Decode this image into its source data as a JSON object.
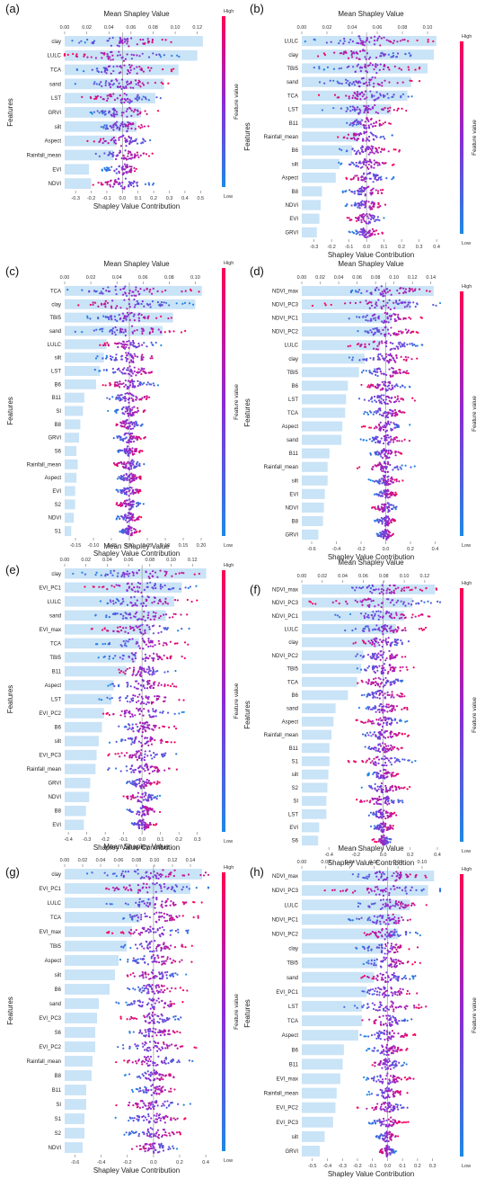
{
  "figure": {
    "common": {
      "top_axis_label": "Mean Shapley Value",
      "bottom_axis_label": "Shapley Value Contribution",
      "y_axis_label": "Features",
      "colorbar_label": "Feature value",
      "colorbar_high": "High",
      "colorbar_low": "Low",
      "colors": {
        "bar": "#c9e3f7",
        "low": "#1e88e5",
        "high": "#ff0052",
        "dot_mid": "#8a2bd4",
        "zero_line": "#999999"
      }
    }
  },
  "chart_data": [
    {
      "panel": "(a)",
      "type": "bar",
      "features": [
        "clay",
        "LULC",
        "TCA",
        "sand",
        "LST",
        "GRVI",
        "silt",
        "Aspect",
        "Rainfall_mean",
        "EVI",
        "NDVI"
      ],
      "mean_shapley": [
        0.125,
        0.12,
        0.103,
        0.09,
        0.082,
        0.069,
        0.065,
        0.047,
        0.044,
        0.022,
        0.024
      ],
      "spread": [
        0.34,
        0.42,
        0.34,
        0.32,
        0.28,
        0.24,
        0.2,
        0.24,
        0.22,
        0.14,
        0.2
      ],
      "top_ticks": [
        "0.00",
        "0.02",
        "0.04",
        "0.06",
        "0.08",
        "0.10",
        "0.12"
      ],
      "top_range": [
        0,
        0.13
      ],
      "bottom_ticks": [
        "-0.3",
        "-0.2",
        "-0.1",
        "0.0",
        "0.1",
        "0.2",
        "0.3",
        "0.4",
        "0.5"
      ],
      "bottom_range": [
        -0.37,
        0.55
      ]
    },
    {
      "panel": "(b)",
      "type": "bar",
      "features": [
        "LULC",
        "clay",
        "TBI5",
        "sand",
        "TCA",
        "LST",
        "B11",
        "Rainfall_mean",
        "B6",
        "silt",
        "Aspect",
        "B8",
        "NDVI",
        "EVI",
        "GRVI"
      ],
      "mean_shapley": [
        0.107,
        0.105,
        0.1,
        0.087,
        0.084,
        0.071,
        0.048,
        0.045,
        0.04,
        0.03,
        0.027,
        0.016,
        0.015,
        0.014,
        0.012
      ],
      "spread": [
        0.4,
        0.34,
        0.34,
        0.32,
        0.3,
        0.26,
        0.18,
        0.2,
        0.2,
        0.16,
        0.16,
        0.14,
        0.13,
        0.12,
        0.1
      ],
      "top_ticks": [
        "0.00",
        "0.02",
        "0.04",
        "0.06",
        "0.08",
        "0.10"
      ],
      "top_range": [
        0,
        0.11
      ],
      "bottom_ticks": [
        "-0.3",
        "-0.2",
        "-0.1",
        "0.0",
        "0.1",
        "0.2",
        "0.3",
        "0.4"
      ],
      "bottom_range": [
        -0.37,
        0.42
      ]
    },
    {
      "panel": "(c)",
      "type": "bar",
      "features": [
        "TCA",
        "clay",
        "TBI5",
        "sand",
        "LULC",
        "silt",
        "LST",
        "B6",
        "B11",
        "SI",
        "B8",
        "GRVI",
        "S6",
        "Rainfall_mean",
        "Aspect",
        "EVI",
        "S2",
        "NDVI",
        "S1"
      ],
      "mean_shapley": [
        0.105,
        0.1,
        0.083,
        0.075,
        0.032,
        0.03,
        0.027,
        0.024,
        0.015,
        0.014,
        0.012,
        0.011,
        0.009,
        0.01,
        0.009,
        0.008,
        0.008,
        0.007,
        0.005
      ],
      "spread": [
        0.2,
        0.18,
        0.12,
        0.16,
        0.1,
        0.1,
        0.1,
        0.08,
        0.07,
        0.06,
        0.05,
        0.05,
        0.04,
        0.05,
        0.04,
        0.04,
        0.04,
        0.04,
        0.03
      ],
      "top_ticks": [
        "0.00",
        "0.02",
        "0.04",
        "0.06",
        "0.08",
        "0.10"
      ],
      "top_range": [
        0,
        0.11
      ],
      "bottom_ticks": [
        "-0.15",
        "-0.10",
        "-0.05",
        "0.00",
        "0.05",
        "0.10",
        "0.15",
        "0.20"
      ],
      "bottom_range": [
        -0.18,
        0.22
      ]
    },
    {
      "panel": "(d)",
      "type": "bar",
      "features": [
        "NDVI_max",
        "NDVI_PC3",
        "NDVI_PC1",
        "NDVI_PC2",
        "LULC",
        "clay",
        "TBI5",
        "B6",
        "LST",
        "TCA",
        "Aspect",
        "sand",
        "B11",
        "Rainfall_mean",
        "silt",
        "EVI",
        "NDVI",
        "B8",
        "GRVI"
      ],
      "mean_shapley": [
        0.143,
        0.118,
        0.097,
        0.094,
        0.085,
        0.068,
        0.062,
        0.05,
        0.048,
        0.047,
        0.044,
        0.043,
        0.03,
        0.028,
        0.028,
        0.025,
        0.024,
        0.023,
        0.018
      ],
      "spread": [
        0.42,
        0.6,
        0.34,
        0.3,
        0.34,
        0.3,
        0.26,
        0.2,
        0.26,
        0.22,
        0.2,
        0.22,
        0.14,
        0.24,
        0.14,
        0.1,
        0.12,
        0.1,
        0.08
      ],
      "top_ticks": [
        "0.00",
        "0.02",
        "0.04",
        "0.06",
        "0.08",
        "0.10",
        "0.12",
        "0.14"
      ],
      "top_range": [
        0,
        0.15
      ],
      "bottom_ticks": [
        "-0.6",
        "-0.4",
        "-0.2",
        "0.0",
        "0.2",
        "0.4"
      ],
      "bottom_range": [
        -0.68,
        0.44
      ]
    },
    {
      "panel": "(e)",
      "type": "bar",
      "features": [
        "clay",
        "EVI_PC1",
        "LULC",
        "sand",
        "EVI_max",
        "TCA",
        "TBI5",
        "B11",
        "Aspect",
        "LST",
        "EVI_PC2",
        "B6",
        "silt",
        "EVI_PC3",
        "Rainfall_mean",
        "GRVI",
        "NDVI",
        "B8",
        "EVI"
      ],
      "mean_shapley": [
        0.133,
        0.11,
        0.103,
        0.095,
        0.08,
        0.07,
        0.067,
        0.058,
        0.046,
        0.044,
        0.037,
        0.035,
        0.032,
        0.03,
        0.029,
        0.024,
        0.023,
        0.02,
        0.018
      ],
      "spread": [
        0.38,
        0.32,
        0.32,
        0.3,
        0.28,
        0.26,
        0.24,
        0.2,
        0.2,
        0.24,
        0.26,
        0.2,
        0.18,
        0.2,
        0.22,
        0.1,
        0.12,
        0.1,
        0.08
      ],
      "top_ticks": [
        "0.00",
        "0.02",
        "0.04",
        "0.06",
        "0.08",
        "0.10",
        "0.12"
      ],
      "top_range": [
        0,
        0.135
      ],
      "bottom_ticks": [
        "-0.4",
        "-0.3",
        "-0.2",
        "-0.1",
        "0.0",
        "0.1",
        "0.2",
        "0.3"
      ],
      "bottom_range": [
        -0.42,
        0.36
      ]
    },
    {
      "panel": "(f)",
      "type": "bar",
      "features": [
        "NDVI_max",
        "NDVI_PC3",
        "NDVI_PC1",
        "LULC",
        "clay",
        "NDVI_PC2",
        "TBI5",
        "TCA",
        "B6",
        "sand",
        "Aspect",
        "Rainfall_mean",
        "B11",
        "S1",
        "silt",
        "S2",
        "SI",
        "LST",
        "EVI",
        "S6"
      ],
      "mean_shapley": [
        0.13,
        0.108,
        0.1,
        0.092,
        0.075,
        0.06,
        0.058,
        0.054,
        0.045,
        0.033,
        0.031,
        0.029,
        0.027,
        0.027,
        0.026,
        0.025,
        0.024,
        0.024,
        0.017,
        0.016
      ],
      "spread": [
        0.4,
        0.56,
        0.36,
        0.32,
        0.26,
        0.24,
        0.24,
        0.22,
        0.2,
        0.2,
        0.2,
        0.2,
        0.14,
        0.26,
        0.12,
        0.2,
        0.2,
        0.12,
        0.1,
        0.08
      ],
      "top_ticks": [
        "0.00",
        "0.02",
        "0.04",
        "0.06",
        "0.08",
        "0.10",
        "0.12"
      ],
      "top_range": [
        0,
        0.135
      ],
      "bottom_ticks": [
        "-0.4",
        "-0.2",
        "0.0",
        "0.2",
        "0.4"
      ],
      "bottom_range": [
        -0.6,
        0.42
      ]
    },
    {
      "panel": "(g)",
      "type": "bar",
      "features": [
        "clay",
        "EVI_PC1",
        "LULC",
        "TCA",
        "EVI_max",
        "TBI5",
        "Aspect",
        "silt",
        "B6",
        "sand",
        "EVI_PC3",
        "S6",
        "EVI_PC2",
        "Rainfall_mean",
        "B8",
        "B11",
        "SI",
        "S1",
        "S2",
        "NDVI"
      ],
      "mean_shapley": [
        0.153,
        0.14,
        0.1,
        0.084,
        0.075,
        0.069,
        0.06,
        0.056,
        0.05,
        0.038,
        0.036,
        0.034,
        0.034,
        0.031,
        0.03,
        0.024,
        0.024,
        0.022,
        0.022,
        0.02
      ],
      "spread": [
        0.56,
        0.5,
        0.4,
        0.36,
        0.36,
        0.3,
        0.3,
        0.28,
        0.26,
        0.3,
        0.26,
        0.24,
        0.34,
        0.3,
        0.24,
        0.2,
        0.3,
        0.3,
        0.26,
        0.2
      ],
      "top_ticks": [
        "0.00",
        "0.02",
        "0.04",
        "0.06",
        "0.08",
        "0.10",
        "0.12",
        "0.14"
      ],
      "top_range": [
        0,
        0.16
      ],
      "bottom_ticks": [
        "-0.6",
        "-0.4",
        "-0.2",
        "0.0",
        "0.2",
        "0.4"
      ],
      "bottom_range": [
        -0.68,
        0.42
      ]
    },
    {
      "panel": "(h)",
      "type": "bar",
      "features": [
        "NDVI_max",
        "NDVI_PC3",
        "LULC",
        "NDVI_PC1",
        "NDVI_PC2",
        "clay",
        "TBI5",
        "sand",
        "EVI_PC1",
        "LST",
        "TCA",
        "Aspect",
        "B6",
        "B11",
        "EVI_max",
        "Rainfall_mean",
        "EVI_PC2",
        "EVI_PC3",
        "silt",
        "GRVI"
      ],
      "mean_shapley": [
        0.11,
        0.105,
        0.09,
        0.082,
        0.08,
        0.068,
        0.063,
        0.06,
        0.054,
        0.05,
        0.05,
        0.047,
        0.035,
        0.034,
        0.032,
        0.029,
        0.028,
        0.026,
        0.019,
        0.015
      ],
      "spread": [
        0.3,
        0.44,
        0.3,
        0.26,
        0.22,
        0.22,
        0.22,
        0.2,
        0.22,
        0.3,
        0.18,
        0.2,
        0.14,
        0.14,
        0.18,
        0.14,
        0.22,
        0.14,
        0.08,
        0.06
      ],
      "top_ticks": [
        "0.00",
        "0.02",
        "0.04",
        "0.06",
        "0.08",
        "0.10"
      ],
      "top_range": [
        0,
        0.115
      ],
      "bottom_ticks": [
        "-0.5",
        "-0.4",
        "-0.3",
        "-0.2",
        "-0.1",
        "0.0",
        "0.1",
        "0.2",
        "0.3"
      ],
      "bottom_range": [
        -0.57,
        0.35
      ]
    }
  ]
}
